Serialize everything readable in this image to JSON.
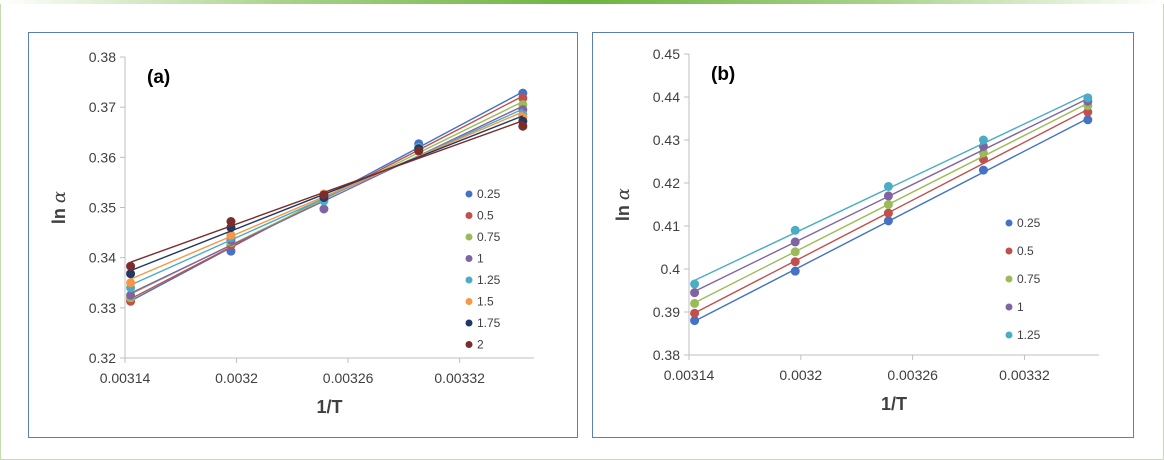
{
  "chart_data": [
    {
      "type": "scatter",
      "panel_label": "(a)",
      "xlabel": "1/T",
      "ylabel_main": "ln ",
      "ylabel_symbol": "α",
      "xlim": [
        0.00314,
        0.00336
      ],
      "ylim": [
        0.32,
        0.38
      ],
      "xticks": [
        0.00314,
        0.0032,
        0.00326,
        0.00332
      ],
      "xtick_labels": [
        "0.00314",
        "0.0032",
        "0.00326",
        "0.00332"
      ],
      "yticks": [
        0.32,
        0.33,
        0.34,
        0.35,
        0.36,
        0.37,
        0.38
      ],
      "ytick_labels": [
        "0.32",
        "0.33",
        "0.34",
        "0.35",
        "0.36",
        "0.37",
        "0.38"
      ],
      "x": [
        0.003143,
        0.003197,
        0.003247,
        0.003298,
        0.003354
      ],
      "series": [
        {
          "name": "0.25",
          "color": "#4472c4",
          "values": [
            0.3318,
            0.3413,
            0.3517,
            0.3627,
            0.3728
          ]
        },
        {
          "name": "0.5",
          "color": "#c0504d",
          "values": [
            0.3313,
            0.3425,
            0.352,
            0.3617,
            0.3718
          ]
        },
        {
          "name": "0.75",
          "color": "#9bbb59",
          "values": [
            0.332,
            0.343,
            0.3522,
            0.3612,
            0.3705
          ]
        },
        {
          "name": "1",
          "color": "#8064a2",
          "values": [
            0.3325,
            0.3435,
            0.3497,
            0.362,
            0.3695
          ]
        },
        {
          "name": "1.25",
          "color": "#4bacc6",
          "values": [
            0.334,
            0.344,
            0.3513,
            0.362,
            0.3685
          ]
        },
        {
          "name": "1.5",
          "color": "#f79646",
          "values": [
            0.335,
            0.3445,
            0.3527,
            0.3612,
            0.368
          ]
        },
        {
          "name": "1.75",
          "color": "#1f3864",
          "values": [
            0.3368,
            0.346,
            0.352,
            0.3617,
            0.3672
          ]
        },
        {
          "name": "2",
          "color": "#7b2c2c",
          "values": [
            0.3383,
            0.3472,
            0.3525,
            0.3613,
            0.3662
          ]
        }
      ]
    },
    {
      "type": "scatter",
      "panel_label": "(b)",
      "xlabel": "1/T",
      "ylabel_main": "ln ",
      "ylabel_symbol": "α",
      "xlim": [
        0.00314,
        0.00336
      ],
      "ylim": [
        0.38,
        0.45
      ],
      "xticks": [
        0.00314,
        0.0032,
        0.00326,
        0.00332
      ],
      "xtick_labels": [
        "0.00314",
        "0.0032",
        "0.00326",
        "0.00332"
      ],
      "yticks": [
        0.38,
        0.39,
        0.4,
        0.41,
        0.42,
        0.43,
        0.44,
        0.45
      ],
      "ytick_labels": [
        "0.38",
        "0.39",
        "0.4",
        "0.41",
        "0.42",
        "0.43",
        "0.44",
        "0.45"
      ],
      "x": [
        0.003143,
        0.003197,
        0.003247,
        0.003298,
        0.003354
      ],
      "series": [
        {
          "name": "0.25",
          "color": "#4472c4",
          "values": [
            0.388,
            0.3995,
            0.4112,
            0.423,
            0.4347
          ]
        },
        {
          "name": "0.5",
          "color": "#c0504d",
          "values": [
            0.3897,
            0.4017,
            0.413,
            0.4255,
            0.4365
          ]
        },
        {
          "name": "0.75",
          "color": "#9bbb59",
          "values": [
            0.392,
            0.404,
            0.415,
            0.427,
            0.438
          ]
        },
        {
          "name": "1",
          "color": "#8064a2",
          "values": [
            0.3945,
            0.4063,
            0.417,
            0.4285,
            0.439
          ]
        },
        {
          "name": "1.25",
          "color": "#4bacc6",
          "values": [
            0.3965,
            0.409,
            0.4192,
            0.43,
            0.4398
          ]
        }
      ]
    }
  ]
}
